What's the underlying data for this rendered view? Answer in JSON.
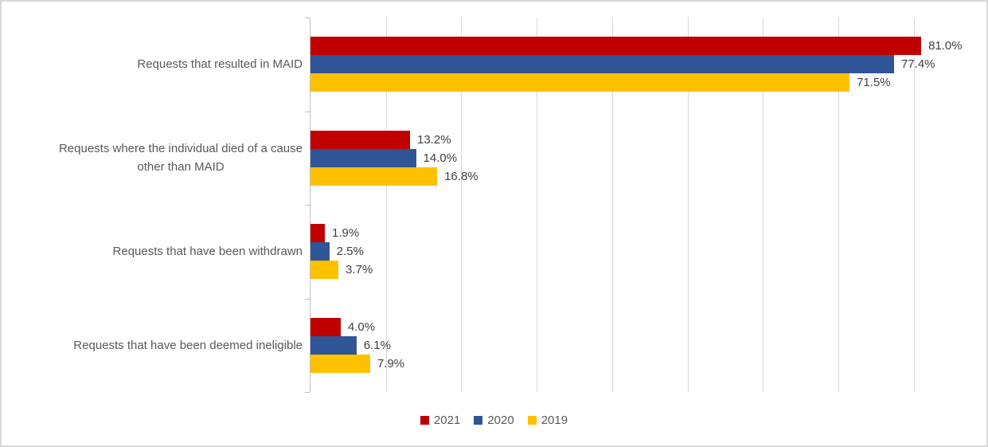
{
  "chart": {
    "background": "#ffffff",
    "border_color": "#d9d9d9",
    "axis_color": "#bfbfbf",
    "gridline_color": "#d9d9d9",
    "category_label_color": "#595959",
    "data_label_color": "#404040",
    "legend_text_color": "#595959"
  },
  "chart_data": {
    "type": "bar",
    "orientation": "horizontal",
    "title": "",
    "xlabel": "",
    "ylabel": "",
    "xlim": [
      0,
      90
    ],
    "grid_step": 10,
    "grid": true,
    "legend_position": "bottom",
    "value_suffix": "%",
    "categories": [
      {
        "lines": [
          "Requests that resulted in MAID"
        ]
      },
      {
        "lines": [
          "Requests where the individual died of a cause",
          "other than MAID"
        ]
      },
      {
        "lines": [
          "Requests that have been withdrawn"
        ]
      },
      {
        "lines": [
          "Requests that have been deemed ineligible"
        ]
      }
    ],
    "series": [
      {
        "name": "2021",
        "color": "#c00000",
        "values": [
          81.0,
          13.2,
          1.9,
          4.0
        ],
        "labels": [
          "81.0%",
          "13.2%",
          "1.9%",
          "4.0%"
        ]
      },
      {
        "name": "2020",
        "color": "#2f5597",
        "values": [
          77.4,
          14.0,
          2.5,
          6.1
        ],
        "labels": [
          "77.4%",
          "14.0%",
          "2.5%",
          "6.1%"
        ]
      },
      {
        "name": "2019",
        "color": "#ffc000",
        "values": [
          71.5,
          16.8,
          3.7,
          7.9
        ],
        "labels": [
          "71.5%",
          "16.8%",
          "3.7%",
          "7.9%"
        ]
      }
    ]
  }
}
